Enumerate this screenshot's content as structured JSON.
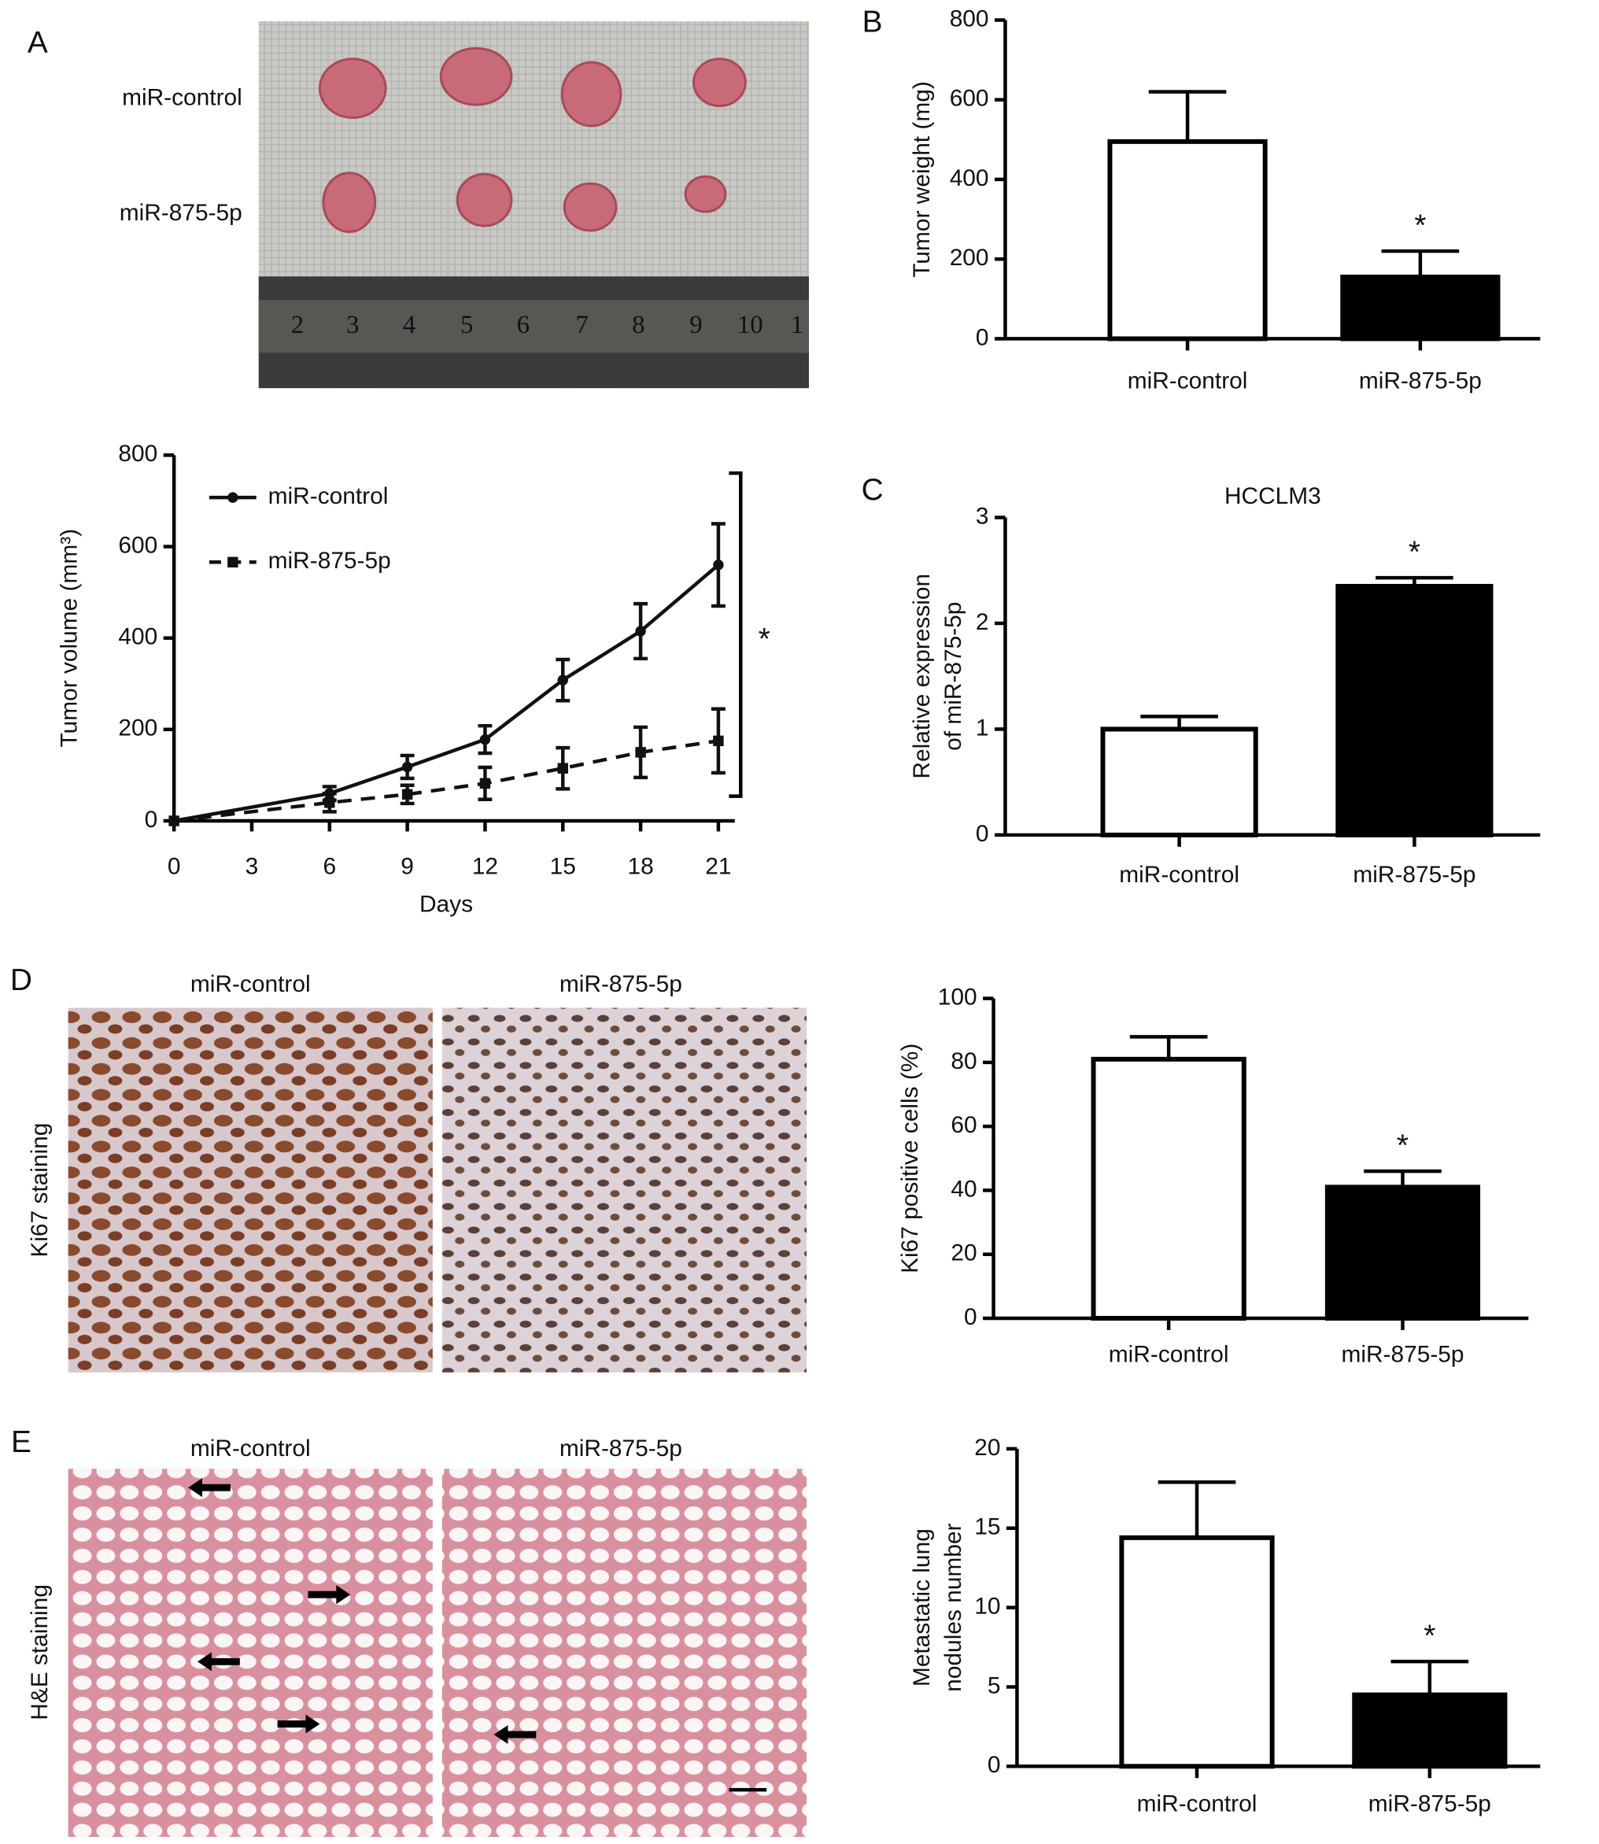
{
  "figure": {
    "panel_labels": [
      "A",
      "B",
      "C",
      "D",
      "E"
    ],
    "photo_a": {
      "rows": [
        "miR-control",
        "miR-875-5p"
      ],
      "ruler": [
        "2",
        "3",
        "4",
        "5",
        "6",
        "7",
        "8",
        "9",
        "10",
        "1"
      ]
    },
    "photo_d": {
      "columns": [
        "miR-control",
        "miR-875-5p"
      ],
      "row": "Ki67 staining"
    },
    "photo_e": {
      "columns": [
        "miR-control",
        "miR-875-5p"
      ],
      "row": "H&E staining"
    }
  },
  "chart_data": [
    {
      "type": "line",
      "xlabel": "Days",
      "ylabel": "Tumor volume (mm³)",
      "x": [
        0,
        6,
        9,
        12,
        15,
        18,
        21
      ],
      "series": [
        {
          "name": "miR-control",
          "color": "#111111",
          "marker": "circle",
          "dash": false,
          "values": [
            0,
            60,
            118,
            178,
            308,
            415,
            560
          ],
          "errors": [
            0,
            15,
            25,
            30,
            45,
            60,
            90
          ]
        },
        {
          "name": "miR-875-5p",
          "color": "#111111",
          "marker": "square",
          "dash": true,
          "values": [
            0,
            40,
            58,
            82,
            115,
            150,
            175
          ],
          "errors": [
            0,
            20,
            20,
            35,
            45,
            55,
            70
          ]
        }
      ],
      "xlim": [
        0,
        21
      ],
      "xticks": [
        0,
        3,
        6,
        9,
        12,
        15,
        18,
        21
      ],
      "ylim": [
        0,
        800
      ],
      "yticks": [
        0,
        200,
        400,
        600,
        800
      ],
      "legend": "upper-left",
      "annotation": "*"
    },
    {
      "type": "bar",
      "ylabel": "Tumor weight (mg)",
      "categories": [
        "miR-control",
        "miR-875-5p"
      ],
      "values": [
        495,
        155
      ],
      "errors": [
        125,
        65
      ],
      "colors": [
        "#ffffff",
        "#000000"
      ],
      "significance": [
        null,
        "*"
      ],
      "ylim": [
        0,
        800
      ],
      "yticks": [
        0,
        200,
        400,
        600,
        800
      ]
    },
    {
      "type": "bar",
      "title": "HCCLM3",
      "ylabel": [
        "Relative expression",
        "of miR-875-5p"
      ],
      "categories": [
        "miR-control",
        "miR-875-5p"
      ],
      "values": [
        1.0,
        2.35
      ],
      "errors": [
        0.12,
        0.08
      ],
      "colors": [
        "#ffffff",
        "#000000"
      ],
      "significance": [
        null,
        "*"
      ],
      "ylim": [
        0,
        3
      ],
      "yticks": [
        0,
        1,
        2,
        3
      ]
    },
    {
      "type": "bar",
      "ylabel": "Ki67 positive cells (%)",
      "categories": [
        "miR-control",
        "miR-875-5p"
      ],
      "values": [
        81,
        41
      ],
      "errors": [
        7,
        5
      ],
      "colors": [
        "#ffffff",
        "#000000"
      ],
      "significance": [
        null,
        "*"
      ],
      "ylim": [
        0,
        100
      ],
      "yticks": [
        0,
        20,
        40,
        60,
        80,
        100
      ]
    },
    {
      "type": "bar",
      "ylabel": [
        "Metastatic lung",
        "nodules number"
      ],
      "categories": [
        "miR-control",
        "miR-875-5p"
      ],
      "values": [
        14.4,
        4.5
      ],
      "errors": [
        3.5,
        2.1
      ],
      "colors": [
        "#ffffff",
        "#000000"
      ],
      "significance": [
        null,
        "*"
      ],
      "ylim": [
        0,
        20
      ],
      "yticks": [
        0,
        5,
        10,
        15,
        20
      ]
    }
  ]
}
